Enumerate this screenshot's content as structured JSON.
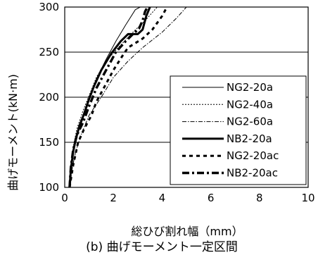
{
  "chart_data": {
    "type": "line",
    "title": "",
    "caption": "(b) 曲げモーメント一定区間",
    "xlabel": "総ひび割れ幅（mm）",
    "ylabel": "曲げモーメント(kN·m)",
    "xlim": [
      0,
      10
    ],
    "ylim": [
      100,
      300
    ],
    "xticks": [
      0,
      2,
      4,
      6,
      8,
      10
    ],
    "yticks": [
      100,
      150,
      200,
      250,
      300
    ],
    "grid": "horizontal",
    "legend_position": "inside-bottom-right",
    "series": [
      {
        "name": "NG2-20a",
        "style": "thin-solid",
        "points": [
          [
            0.2,
            100
          ],
          [
            0.25,
            118
          ],
          [
            0.3,
            133
          ],
          [
            0.42,
            150
          ],
          [
            0.6,
            165
          ],
          [
            0.8,
            180
          ],
          [
            1.0,
            200
          ],
          [
            1.3,
            220
          ],
          [
            1.7,
            242
          ],
          [
            2.1,
            262
          ],
          [
            2.5,
            280
          ],
          [
            2.9,
            297
          ],
          [
            3.1,
            300
          ]
        ]
      },
      {
        "name": "NG2-40a",
        "style": "dotted",
        "points": [
          [
            0.2,
            100
          ],
          [
            0.25,
            120
          ],
          [
            0.35,
            145
          ],
          [
            0.5,
            165
          ],
          [
            0.75,
            185
          ],
          [
            1.05,
            205
          ],
          [
            1.3,
            222
          ],
          [
            1.7,
            240
          ],
          [
            2.2,
            255
          ],
          [
            2.8,
            272
          ],
          [
            3.3,
            285
          ],
          [
            3.8,
            300
          ]
        ]
      },
      {
        "name": "NG2-60a",
        "style": "dash-dot",
        "points": [
          [
            0.2,
            100
          ],
          [
            0.3,
            120
          ],
          [
            0.45,
            140
          ],
          [
            0.7,
            160
          ],
          [
            1.0,
            180
          ],
          [
            1.5,
            200
          ],
          [
            2.0,
            222
          ],
          [
            2.6,
            240
          ],
          [
            3.2,
            255
          ],
          [
            4.0,
            272
          ],
          [
            4.6,
            288
          ],
          [
            5.0,
            300
          ]
        ]
      },
      {
        "name": "NB2-20a",
        "style": "thick-solid",
        "points": [
          [
            0.2,
            100
          ],
          [
            0.25,
            120
          ],
          [
            0.35,
            140
          ],
          [
            0.45,
            153
          ],
          [
            0.6,
            168
          ],
          [
            0.8,
            182
          ],
          [
            1.0,
            198
          ],
          [
            1.2,
            212
          ],
          [
            1.5,
            230
          ],
          [
            1.9,
            248
          ],
          [
            2.3,
            262
          ],
          [
            2.6,
            270
          ],
          [
            3.0,
            270
          ],
          [
            3.2,
            275
          ],
          [
            3.35,
            290
          ],
          [
            3.5,
            300
          ]
        ]
      },
      {
        "name": "NG2-20ac",
        "style": "thick-dashed",
        "points": [
          [
            0.2,
            100
          ],
          [
            0.35,
            125
          ],
          [
            0.55,
            150
          ],
          [
            0.8,
            165
          ],
          [
            1.1,
            180
          ],
          [
            1.3,
            195
          ],
          [
            1.6,
            210
          ],
          [
            2.0,
            230
          ],
          [
            2.35,
            245
          ],
          [
            2.6,
            255
          ],
          [
            2.9,
            260
          ],
          [
            3.2,
            265
          ],
          [
            3.6,
            275
          ],
          [
            4.0,
            290
          ],
          [
            4.2,
            300
          ]
        ]
      },
      {
        "name": "NB2-20ac",
        "style": "thick-dash-dot",
        "points": [
          [
            0.2,
            100
          ],
          [
            0.25,
            122
          ],
          [
            0.35,
            142
          ],
          [
            0.5,
            158
          ],
          [
            0.75,
            172
          ],
          [
            1.0,
            190
          ],
          [
            1.3,
            210
          ],
          [
            1.7,
            230
          ],
          [
            2.1,
            250
          ],
          [
            2.5,
            262
          ],
          [
            2.8,
            270
          ],
          [
            3.05,
            276
          ],
          [
            3.2,
            285
          ],
          [
            3.3,
            295
          ],
          [
            3.4,
            300
          ]
        ]
      }
    ]
  }
}
